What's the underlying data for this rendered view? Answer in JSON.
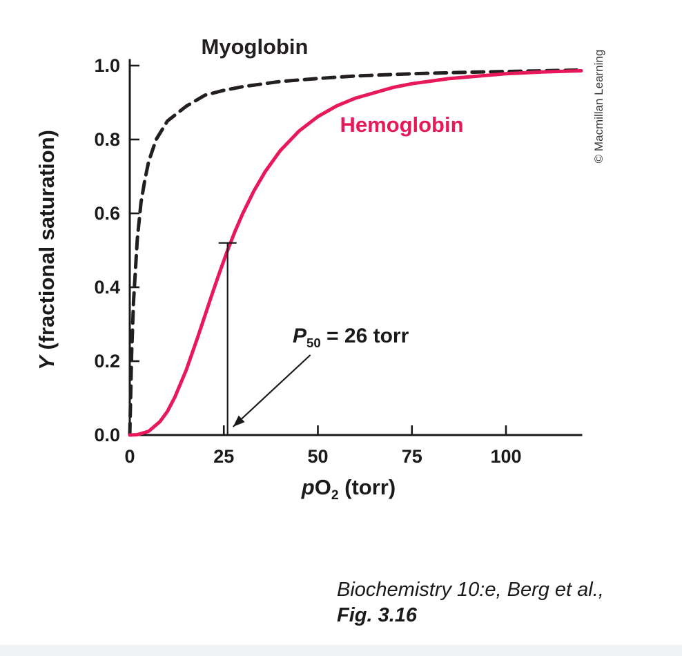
{
  "page": {
    "credit_vertical": "© Macmillan Learning",
    "caption_line1": "Biochemistry 10:e, Berg et al.,",
    "caption_line2": "Fig. 3.16"
  },
  "chart_data": {
    "type": "line",
    "title": "",
    "xlabel_parts": {
      "italic": "p",
      "main": "O",
      "sub": "2",
      "rest": " (torr)"
    },
    "ylabel_parts": {
      "italic": "Y",
      "rest": " (fractional saturation)"
    },
    "xlim": [
      0,
      120
    ],
    "ylim": [
      0,
      1.0
    ],
    "grid": false,
    "x_ticks": {
      "values": [
        0,
        25,
        50,
        75,
        100
      ],
      "labels": [
        "0",
        "25",
        "50",
        "75",
        "100"
      ]
    },
    "y_ticks": {
      "values": [
        0,
        0.2,
        0.4,
        0.6,
        0.8,
        1.0
      ],
      "labels": [
        "0.0",
        "0.2",
        "0.4",
        "0.6",
        "0.8",
        "1.0"
      ]
    },
    "series": [
      {
        "name": "Myoglobin",
        "color": "#231f20",
        "style": "dashed",
        "x": [
          0,
          0.5,
          1,
          2,
          3,
          4,
          5,
          7,
          10,
          15,
          20,
          25,
          30,
          40,
          50,
          60,
          75,
          90,
          105,
          120
        ],
        "y": [
          0,
          0.22,
          0.36,
          0.53,
          0.63,
          0.69,
          0.74,
          0.8,
          0.85,
          0.89,
          0.92,
          0.933,
          0.943,
          0.957,
          0.965,
          0.972,
          0.978,
          0.982,
          0.985,
          0.988
        ]
      },
      {
        "name": "Hemoglobin",
        "color": "#e8195b",
        "style": "solid",
        "x": [
          0,
          2,
          5,
          8,
          10,
          12,
          15,
          18,
          20,
          22,
          24,
          26,
          28,
          30,
          33,
          36,
          40,
          45,
          50,
          55,
          60,
          70,
          75,
          85,
          100,
          110,
          120
        ],
        "y": [
          0,
          0.001,
          0.01,
          0.036,
          0.064,
          0.103,
          0.176,
          0.263,
          0.324,
          0.385,
          0.444,
          0.5,
          0.552,
          0.599,
          0.661,
          0.713,
          0.77,
          0.823,
          0.862,
          0.891,
          0.912,
          0.941,
          0.951,
          0.965,
          0.978,
          0.983,
          0.986
        ]
      }
    ],
    "annotation": {
      "marker_x": 26,
      "marker_y_top": 0.52,
      "label_parts": {
        "italic": "P",
        "sub": "50",
        "rest": " = 26 torr"
      }
    }
  }
}
